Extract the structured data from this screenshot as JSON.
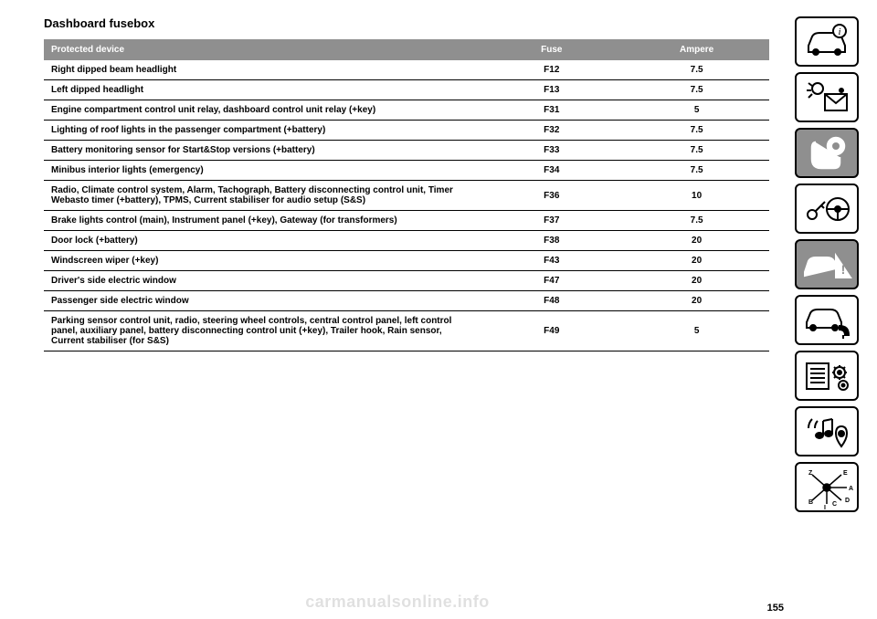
{
  "title": "Dashboard fusebox",
  "headers": {
    "device": "Protected device",
    "fuse": "Fuse",
    "amp": "Ampere"
  },
  "rows": [
    {
      "device": "Right dipped beam headlight",
      "fuse": "F12",
      "amp": "7.5"
    },
    {
      "device": "Left dipped headlight",
      "fuse": "F13",
      "amp": "7.5"
    },
    {
      "device": "Engine compartment control unit relay, dashboard control unit relay (+key)",
      "fuse": "F31",
      "amp": "5"
    },
    {
      "device": "Lighting of roof lights in the passenger compartment (+battery)",
      "fuse": "F32",
      "amp": "7.5"
    },
    {
      "device": "Battery monitoring sensor for Start&Stop versions (+battery)",
      "fuse": "F33",
      "amp": "7.5"
    },
    {
      "device": "Minibus interior lights (emergency)",
      "fuse": "F34",
      "amp": "7.5"
    },
    {
      "device": "Radio, Climate control system, Alarm, Tachograph, Battery disconnecting control unit, Timer Webasto timer (+battery), TPMS, Current stabiliser for audio setup (S&S)",
      "fuse": "F36",
      "amp": "10"
    },
    {
      "device": "Brake lights control (main), Instrument panel (+key), Gateway (for transformers)",
      "fuse": "F37",
      "amp": "7.5"
    },
    {
      "device": "Door lock (+battery)",
      "fuse": "F38",
      "amp": "20"
    },
    {
      "device": "Windscreen wiper (+key)",
      "fuse": "F43",
      "amp": "20"
    },
    {
      "device": "Driver's side electric window",
      "fuse": "F47",
      "amp": "20"
    },
    {
      "device": "Passenger side electric window",
      "fuse": "F48",
      "amp": "20"
    },
    {
      "device": "Parking sensor control unit, radio, steering wheel controls, central control panel, left control panel, auxiliary panel, battery disconnecting control unit (+key), Trailer hook, Rain sensor, Current stabiliser (for S&S)",
      "fuse": "F49",
      "amp": "5"
    }
  ],
  "page_number": "155",
  "watermark": "carmanualsonline.info",
  "side_icons": [
    "car-info-icon",
    "envelope-light-icon",
    "seat-airbag-icon",
    "key-steering-icon",
    "collision-icon",
    "car-service-icon",
    "list-gear-icon",
    "music-location-icon",
    "gearbox-icon"
  ],
  "active_icon_index": 2,
  "colors": {
    "header_bg": "#8f8f8f",
    "header_fg": "#ffffff",
    "text": "#000000",
    "icon_stroke": "#000000",
    "active_bg": "#8f8f8f",
    "watermark": "rgba(0,0,0,0.12)"
  }
}
